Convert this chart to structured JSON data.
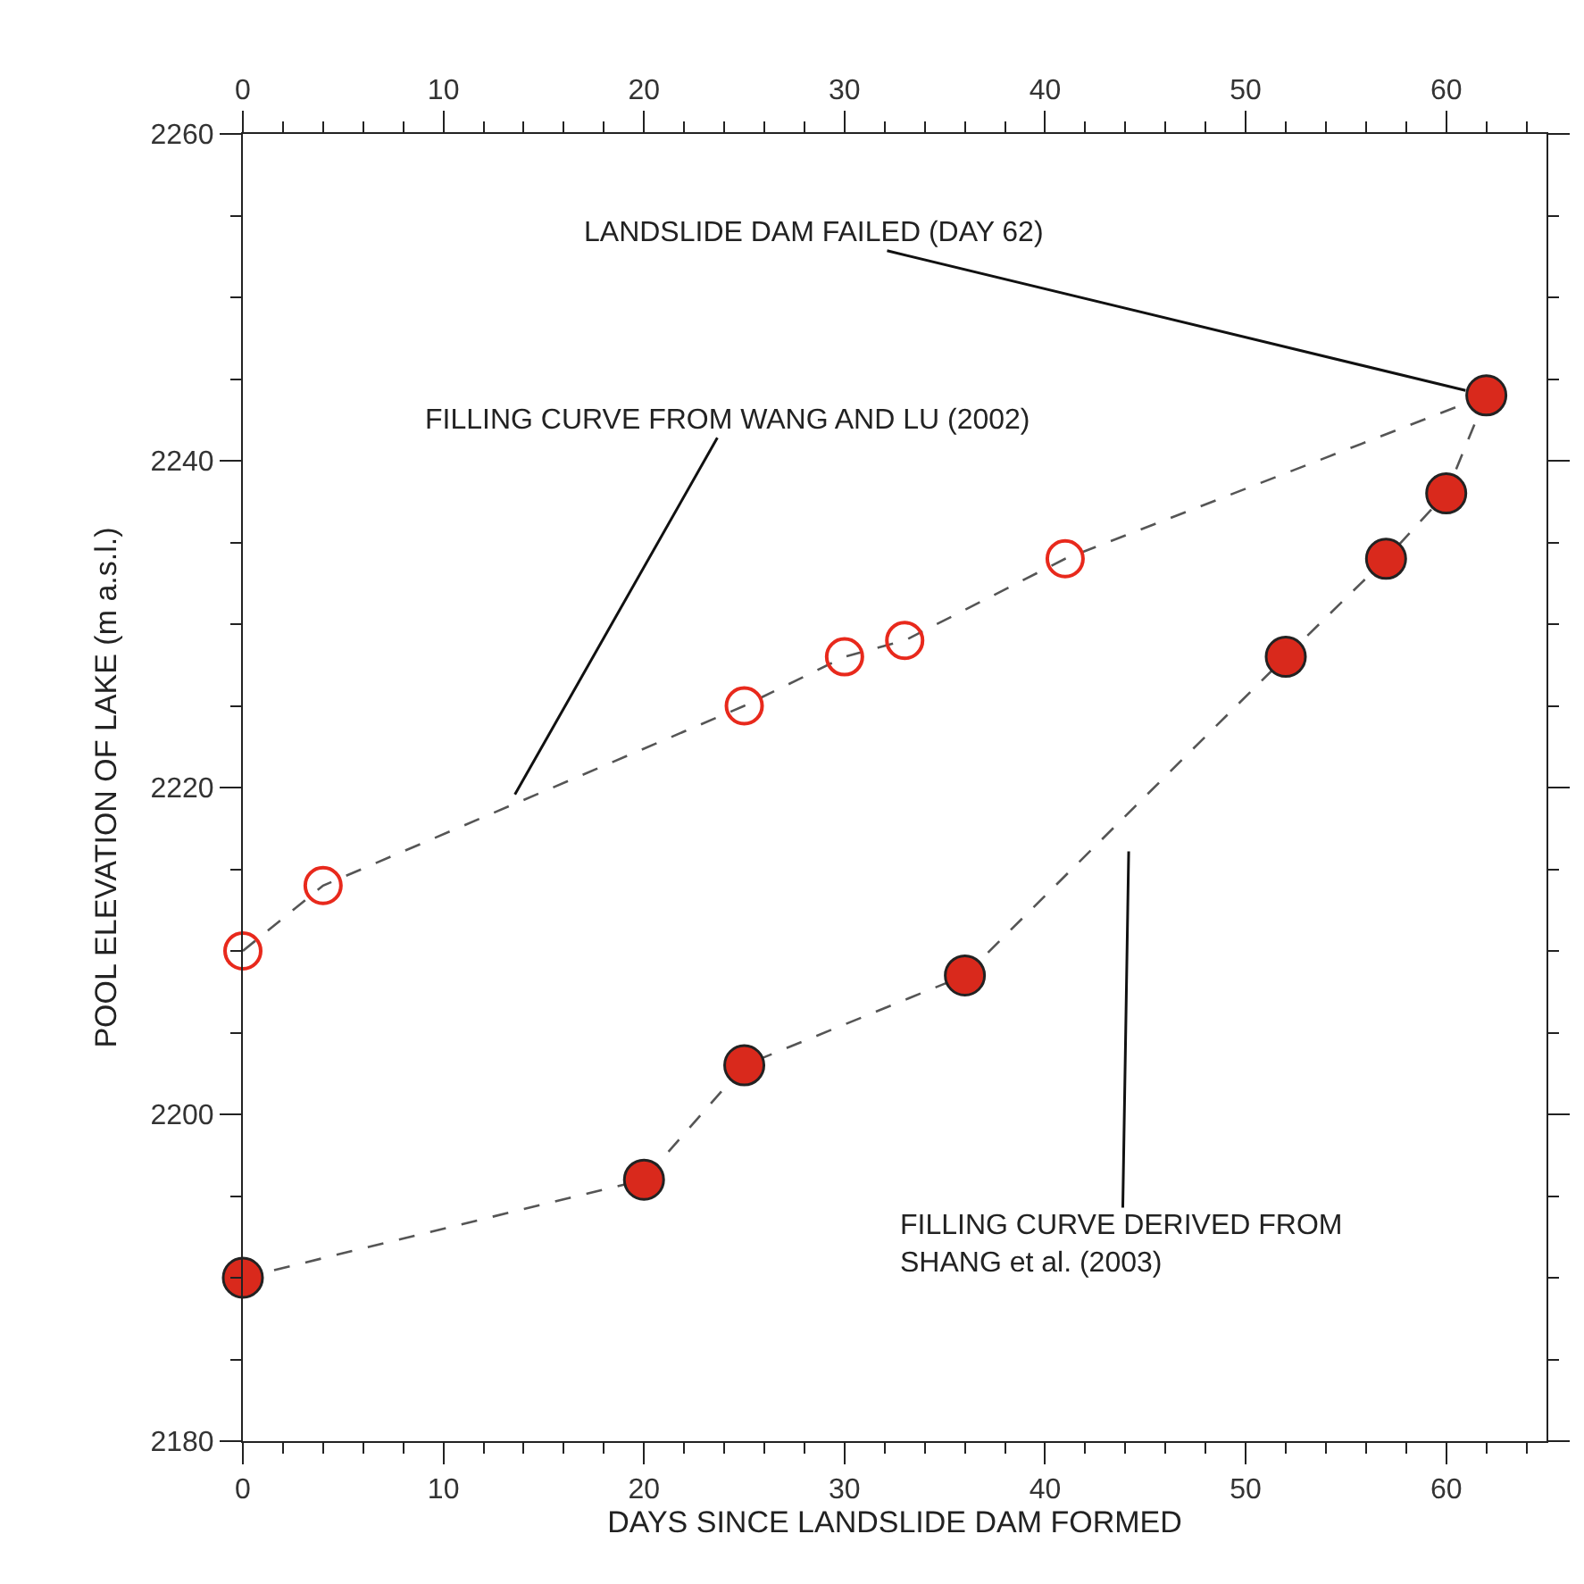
{
  "chart_data": {
    "type": "line",
    "xlabel": "DAYS SINCE LANDSLIDE DAM FORMED",
    "ylabel": "POOL ELEVATION OF LAKE (m a.s.l.)",
    "series": [
      {
        "color": "#e8291c",
        "marker": "circle-open",
        "x": [
          0,
          4,
          25,
          30,
          33,
          41,
          62
        ],
        "values": [
          2210,
          2214,
          2225,
          2228,
          2229,
          2234,
          2244
        ]
      },
      {
        "color": "#d9291c",
        "marker": "circle",
        "x": [
          0,
          20,
          25,
          36,
          52,
          57,
          60,
          62
        ],
        "values": [
          2190,
          2196,
          2203,
          2208.5,
          2228,
          2234,
          2238,
          2244
        ]
      }
    ],
    "annotations": [
      {
        "text": "LANDSLIDE DAM FAILED (DAY 62)",
        "x": 62,
        "y": 2244
      },
      {
        "text": "FILLING CURVE FROM WANG AND LU (2002)",
        "x": 13.3,
        "y": 2219
      },
      {
        "text": "FILLING CURVE DERIVED FROM SHANG et al. (2003)",
        "x": 44.2,
        "y": 2218.5
      }
    ],
    "xlim": [
      0,
      65
    ],
    "xticks": [
      0,
      {
        "value": 2,
        "label": null
      },
      {
        "value": 4,
        "label": null
      },
      {
        "value": 6,
        "label": null
      },
      {
        "value": 8,
        "label": null
      },
      10,
      {
        "value": 12,
        "label": null
      },
      {
        "value": 14,
        "label": null
      },
      {
        "value": 16,
        "label": null
      },
      {
        "value": 18,
        "label": null
      },
      20,
      {
        "value": 22,
        "label": null
      },
      {
        "value": 24,
        "label": null
      },
      {
        "value": 26,
        "label": null
      },
      {
        "value": 28,
        "label": null
      },
      30,
      {
        "value": 32,
        "label": null
      },
      {
        "value": 34,
        "label": null
      },
      {
        "value": 36,
        "label": null
      },
      {
        "value": 38,
        "label": null
      },
      40,
      {
        "value": 42,
        "label": null
      },
      {
        "value": 44,
        "label": null
      },
      {
        "value": 46,
        "label": null
      },
      {
        "value": 48,
        "label": null
      },
      50,
      {
        "value": 52,
        "label": null
      },
      {
        "value": 54,
        "label": null
      },
      {
        "value": 56,
        "label": null
      },
      {
        "value": 58,
        "label": null
      },
      60,
      {
        "value": 62,
        "label": null
      },
      {
        "value": 64,
        "label": null
      }
    ],
    "x2lim": [
      0,
      65
    ],
    "x2ticks": [
      0,
      {
        "value": 2,
        "label": null
      },
      {
        "value": 4,
        "label": null
      },
      {
        "value": 6,
        "label": null
      },
      {
        "value": 8,
        "label": null
      },
      10,
      {
        "value": 12,
        "label": null
      },
      {
        "value": 14,
        "label": null
      },
      {
        "value": 16,
        "label": null
      },
      {
        "value": 18,
        "label": null
      },
      20,
      {
        "value": 22,
        "label": null
      },
      {
        "value": 24,
        "label": null
      },
      {
        "value": 26,
        "label": null
      },
      {
        "value": 28,
        "label": null
      },
      30,
      {
        "value": 32,
        "label": null
      },
      {
        "value": 34,
        "label": null
      },
      {
        "value": 36,
        "label": null
      },
      {
        "value": 38,
        "label": null
      },
      40,
      {
        "value": 42,
        "label": null
      },
      {
        "value": 44,
        "label": null
      },
      {
        "value": 46,
        "label": null
      },
      {
        "value": 48,
        "label": null
      },
      50,
      {
        "value": 52,
        "label": null
      },
      {
        "value": 54,
        "label": null
      },
      {
        "value": 56,
        "label": null
      },
      {
        "value": 58,
        "label": null
      },
      60,
      {
        "value": 62,
        "label": null
      },
      {
        "value": 64,
        "label": null
      }
    ],
    "ylim": [
      2180,
      2260
    ],
    "yticks": [
      2180,
      {
        "value": 2185,
        "label": null
      },
      {
        "value": 2190,
        "label": null
      },
      {
        "value": 2195,
        "label": null
      },
      2200,
      {
        "value": 2205,
        "label": null
      },
      {
        "value": 2210,
        "label": null
      },
      {
        "value": 2215,
        "label": null
      },
      2220,
      {
        "value": 2225,
        "label": null
      },
      {
        "value": 2230,
        "label": null
      },
      {
        "value": 2235,
        "label": null
      },
      2240,
      {
        "value": 2245,
        "label": null
      },
      {
        "value": 2250,
        "label": null
      },
      {
        "value": 2255,
        "label": null
      },
      2260
    ],
    "grid": false,
    "line_style": "dashed"
  }
}
